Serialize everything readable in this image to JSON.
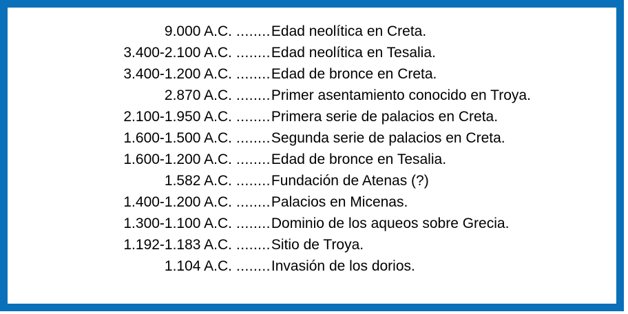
{
  "frame": {
    "border_color": "#0a70b9"
  },
  "timeline": {
    "separator": "........",
    "entries": [
      {
        "date": "9.000 A.C.",
        "event": "Edad neolítica en Creta."
      },
      {
        "date": "3.400-2.100 A.C.",
        "event": "Edad neolítica en Tesalia."
      },
      {
        "date": "3.400-1.200 A.C.",
        "event": "Edad de bronce en Creta."
      },
      {
        "date": "2.870 A.C.",
        "event": "Primer asentamiento conocido en Troya."
      },
      {
        "date": "2.100-1.950 A.C.",
        "event": "Primera serie de palacios en Creta."
      },
      {
        "date": "1.600-1.500 A.C.",
        "event": "Segunda serie de palacios en Creta."
      },
      {
        "date": "1.600-1.200 A.C.",
        "event": "Edad de bronce en Tesalia."
      },
      {
        "date": "1.582 A.C.",
        "event": "Fundación de Atenas (?)"
      },
      {
        "date": "1.400-1.200 A.C.",
        "event": "Palacios en Micenas."
      },
      {
        "date": "1.300-1.100 A.C.",
        "event": "Dominio de los aqueos sobre Grecia."
      },
      {
        "date": "1.192-1.183 A.C.",
        "event": "Sitio de Troya."
      },
      {
        "date": "1.104 A.C.",
        "event": "Invasión de los dorios."
      }
    ]
  }
}
